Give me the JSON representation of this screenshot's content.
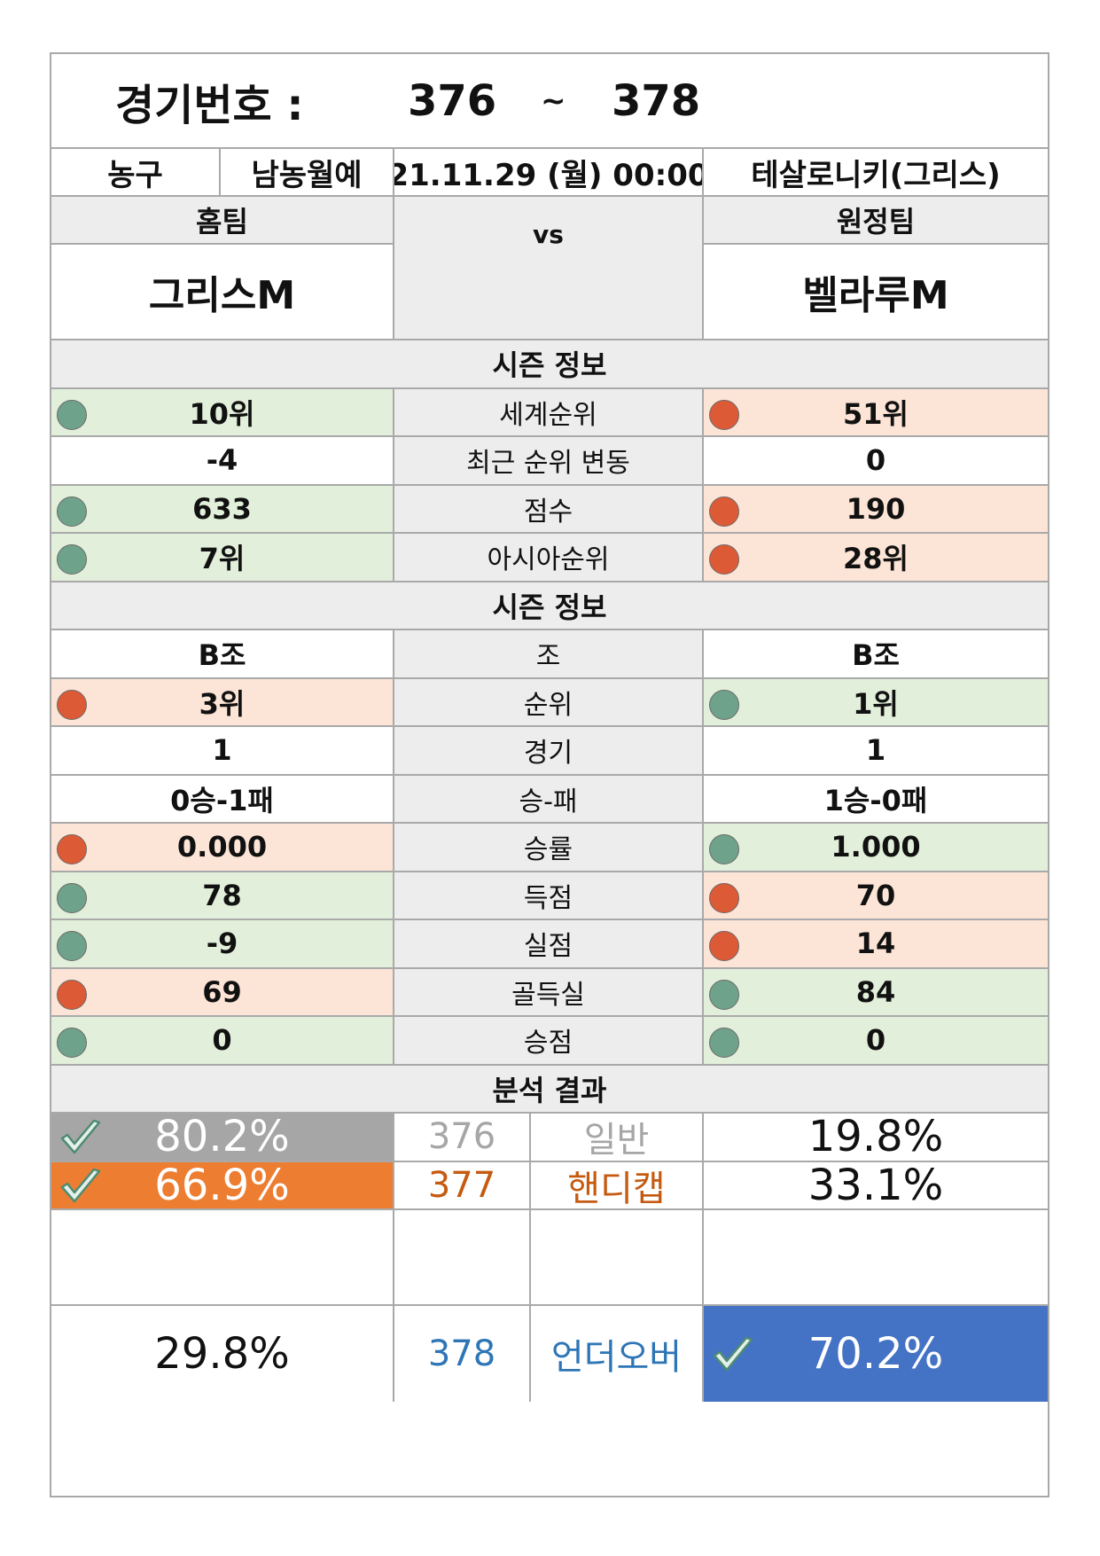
{
  "header": {
    "label": "경기번호 :",
    "from": "376",
    "sep": "~",
    "to": "378"
  },
  "info": {
    "sport": "농구",
    "league": "남농월예",
    "datetime": "21.11.29 (월) 00:00",
    "venue": "테살로니키(그리스)"
  },
  "teams": {
    "home_label": "홈팀",
    "away_label": "원정팀",
    "vs": "vs",
    "home_name": "그리스M",
    "away_name": "벨라루M"
  },
  "section1_title": "시즌 정보",
  "section1_rows": [
    {
      "label": "세계순위",
      "home": "10위",
      "away": "51위",
      "home_status": "good",
      "away_status": "bad"
    },
    {
      "label": "최근 순위 변동",
      "home": "-4",
      "away": "0",
      "home_status": "none",
      "away_status": "none"
    },
    {
      "label": "점수",
      "home": "633",
      "away": "190",
      "home_status": "good",
      "away_status": "bad"
    },
    {
      "label": "아시아순위",
      "home": "7위",
      "away": "28위",
      "home_status": "good",
      "away_status": "bad"
    }
  ],
  "section2_title": "시즌 정보",
  "section2_rows": [
    {
      "label": "조",
      "home": "B조",
      "away": "B조",
      "home_status": "none",
      "away_status": "none"
    },
    {
      "label": "순위",
      "home": "3위",
      "away": "1위",
      "home_status": "bad",
      "away_status": "good"
    },
    {
      "label": "경기",
      "home": "1",
      "away": "1",
      "home_status": "none",
      "away_status": "none"
    },
    {
      "label": "승-패",
      "home": "0승-1패",
      "away": "1승-0패",
      "home_status": "none",
      "away_status": "none"
    },
    {
      "label": "승률",
      "home": "0.000",
      "away": "1.000",
      "home_status": "bad",
      "away_status": "good"
    },
    {
      "label": "득점",
      "home": "78",
      "away": "70",
      "home_status": "good",
      "away_status": "bad"
    },
    {
      "label": "실점",
      "home": "-9",
      "away": "14",
      "home_status": "good",
      "away_status": "bad"
    },
    {
      "label": "골득실",
      "home": "69",
      "away": "84",
      "home_status": "bad",
      "away_status": "good"
    },
    {
      "label": "승점",
      "home": "0",
      "away": "0",
      "home_status": "good",
      "away_status": "good"
    }
  ],
  "analysis_title": "분석 결과",
  "analysis": [
    {
      "home_pct": "80.2%",
      "code": "376",
      "type": "일반",
      "away_pct": "19.8%",
      "pick": "home",
      "color": "#a6a6a6",
      "text_color": "#a6a6a6"
    },
    {
      "home_pct": "66.9%",
      "code": "377",
      "type": "핸디캡",
      "away_pct": "33.1%",
      "pick": "home",
      "color": "#ed7d31",
      "text_color": "#c55a11"
    },
    {
      "home_pct": "",
      "code": "",
      "type": "",
      "away_pct": "",
      "pick": "none",
      "color": "",
      "text_color": ""
    },
    {
      "home_pct": "29.8%",
      "code": "378",
      "type": "언더오버",
      "away_pct": "70.2%",
      "pick": "away",
      "color": "#4472c4",
      "text_color": "#2e75b6"
    }
  ],
  "colors": {
    "good_dot": "#6fa28b",
    "bad_dot": "#dd5a36",
    "good_bg": "#e2efda",
    "bad_bg": "#fce4d6",
    "header_grey": "#ededed"
  }
}
